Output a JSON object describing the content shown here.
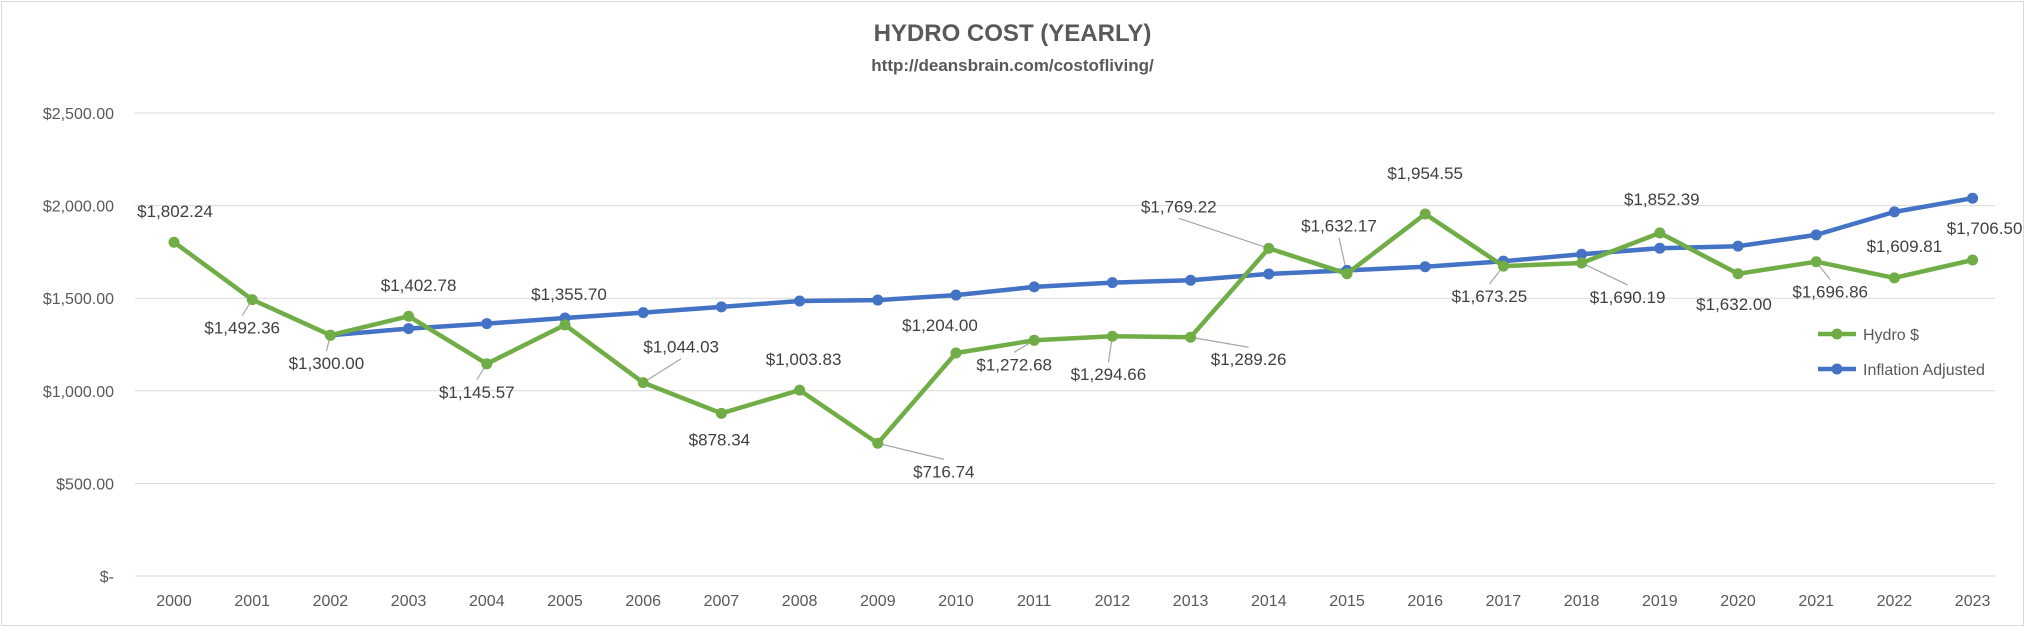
{
  "chart_data": {
    "type": "line",
    "title": "HYDRO COST (YEARLY)",
    "subtitle": "http://deansbrain.com/costofliving/",
    "xlabel": "",
    "ylabel": "",
    "ylim": [
      0,
      2500
    ],
    "yticks": [
      0,
      500,
      1000,
      1500,
      2000,
      2500
    ],
    "ytick_labels": [
      "$-",
      "$500.00",
      "$1,000.00",
      "$1,500.00",
      "$2,000.00",
      "$2,500.00"
    ],
    "grid": true,
    "legend_position": "right",
    "categories": [
      "2000",
      "2001",
      "2002",
      "2003",
      "2004",
      "2005",
      "2006",
      "2007",
      "2008",
      "2009",
      "2010",
      "2011",
      "2012",
      "2013",
      "2014",
      "2015",
      "2016",
      "2017",
      "2018",
      "2019",
      "2020",
      "2021",
      "2022",
      "2023"
    ],
    "series": [
      {
        "name": "Hydro $",
        "color": "#70ad47",
        "values": [
          1802.24,
          1492.36,
          1300.0,
          1402.78,
          1145.57,
          1355.7,
          1044.03,
          878.34,
          1003.83,
          716.74,
          1204.0,
          1272.68,
          1294.66,
          1289.26,
          1769.22,
          1632.17,
          1954.55,
          1673.25,
          1690.19,
          1852.39,
          1632.0,
          1696.86,
          1609.81,
          1706.5
        ],
        "labels": [
          "$1,802.24",
          "$1,492.36",
          "$1,300.00",
          "$1,402.78",
          "$1,145.57",
          "$1,355.70",
          "$1,044.03",
          "$878.34",
          "$1,003.83",
          "$716.74",
          "$1,204.00",
          "$1,272.68",
          "$1,294.66",
          "$1,289.26",
          "$1,769.22",
          "$1,632.17",
          "$1,954.55",
          "$1,673.25",
          "$1,690.19",
          "$1,852.39",
          "$1,632.00",
          "$1,696.86",
          "$1,609.81",
          "$1,706.50"
        ]
      },
      {
        "name": "Inflation Adjusted",
        "color": "#4472c4",
        "values": [
          null,
          null,
          1300,
          1336,
          1363,
          1393,
          1422,
          1453,
          1485,
          1490,
          1517,
          1561,
          1584,
          1597,
          1631,
          1650,
          1670,
          1700,
          1737,
          1770,
          1781,
          1842,
          1966,
          2040
        ]
      }
    ]
  }
}
